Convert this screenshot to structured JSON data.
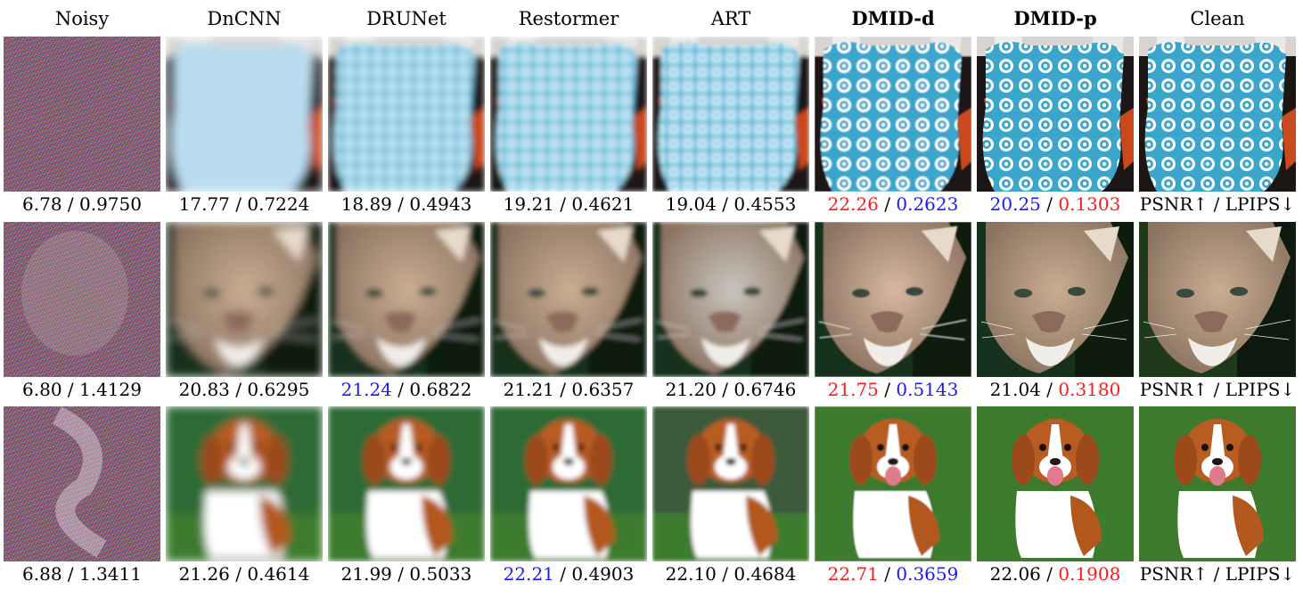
{
  "columns": [
    {
      "label": "Noisy",
      "bold": false
    },
    {
      "label": "DnCNN",
      "bold": false
    },
    {
      "label": "DRUNet",
      "bold": false
    },
    {
      "label": "Restormer",
      "bold": false
    },
    {
      "label": "ART",
      "bold": false
    },
    {
      "label": "DMID-d",
      "bold": true
    },
    {
      "label": "DMID-p",
      "bold": true
    },
    {
      "label": "Clean",
      "bold": false
    }
  ],
  "rows": [
    {
      "subject": "dress",
      "metrics": [
        {
          "psnr": "6.78",
          "lpips": "0.9750",
          "psnr_color": "",
          "lpips_color": ""
        },
        {
          "psnr": "17.77",
          "lpips": "0.7224",
          "psnr_color": "",
          "lpips_color": ""
        },
        {
          "psnr": "18.89",
          "lpips": "0.4943",
          "psnr_color": "",
          "lpips_color": ""
        },
        {
          "psnr": "19.21",
          "lpips": "0.4621",
          "psnr_color": "",
          "lpips_color": ""
        },
        {
          "psnr": "19.04",
          "lpips": "0.4553",
          "psnr_color": "",
          "lpips_color": ""
        },
        {
          "psnr": "22.26",
          "lpips": "0.2623",
          "psnr_color": "red",
          "lpips_color": "blue"
        },
        {
          "psnr": "20.25",
          "lpips": "0.1303",
          "psnr_color": "blue",
          "lpips_color": "red"
        },
        {
          "psnr": "PSNR↑",
          "lpips": "LPIPS↓",
          "psnr_color": "",
          "lpips_color": ""
        }
      ]
    },
    {
      "subject": "cougar",
      "metrics": [
        {
          "psnr": "6.80",
          "lpips": "1.4129",
          "psnr_color": "",
          "lpips_color": ""
        },
        {
          "psnr": "20.83",
          "lpips": "0.6295",
          "psnr_color": "",
          "lpips_color": ""
        },
        {
          "psnr": "21.24",
          "lpips": "0.6822",
          "psnr_color": "blue",
          "lpips_color": ""
        },
        {
          "psnr": "21.21",
          "lpips": "0.6357",
          "psnr_color": "",
          "lpips_color": ""
        },
        {
          "psnr": "21.20",
          "lpips": "0.6746",
          "psnr_color": "",
          "lpips_color": ""
        },
        {
          "psnr": "21.75",
          "lpips": "0.5143",
          "psnr_color": "red",
          "lpips_color": "blue"
        },
        {
          "psnr": "21.04",
          "lpips": "0.3180",
          "psnr_color": "",
          "lpips_color": "red"
        },
        {
          "psnr": "PSNR↑",
          "lpips": "LPIPS↓",
          "psnr_color": "",
          "lpips_color": ""
        }
      ]
    },
    {
      "subject": "puppy",
      "metrics": [
        {
          "psnr": "6.88",
          "lpips": "1.3411",
          "psnr_color": "",
          "lpips_color": ""
        },
        {
          "psnr": "21.26",
          "lpips": "0.4614",
          "psnr_color": "",
          "lpips_color": ""
        },
        {
          "psnr": "21.99",
          "lpips": "0.5033",
          "psnr_color": "",
          "lpips_color": ""
        },
        {
          "psnr": "22.21",
          "lpips": "0.4903",
          "psnr_color": "blue",
          "lpips_color": ""
        },
        {
          "psnr": "22.10",
          "lpips": "0.4684",
          "psnr_color": "",
          "lpips_color": ""
        },
        {
          "psnr": "22.71",
          "lpips": "0.3659",
          "psnr_color": "red",
          "lpips_color": "blue"
        },
        {
          "psnr": "22.06",
          "lpips": "0.1908",
          "psnr_color": "",
          "lpips_color": "red"
        },
        {
          "psnr": "PSNR↑",
          "lpips": "LPIPS↓",
          "psnr_color": "",
          "lpips_color": ""
        }
      ]
    }
  ],
  "separator": "/",
  "colors": {
    "best": "#ff1a1a",
    "second": "#1a1aff"
  }
}
